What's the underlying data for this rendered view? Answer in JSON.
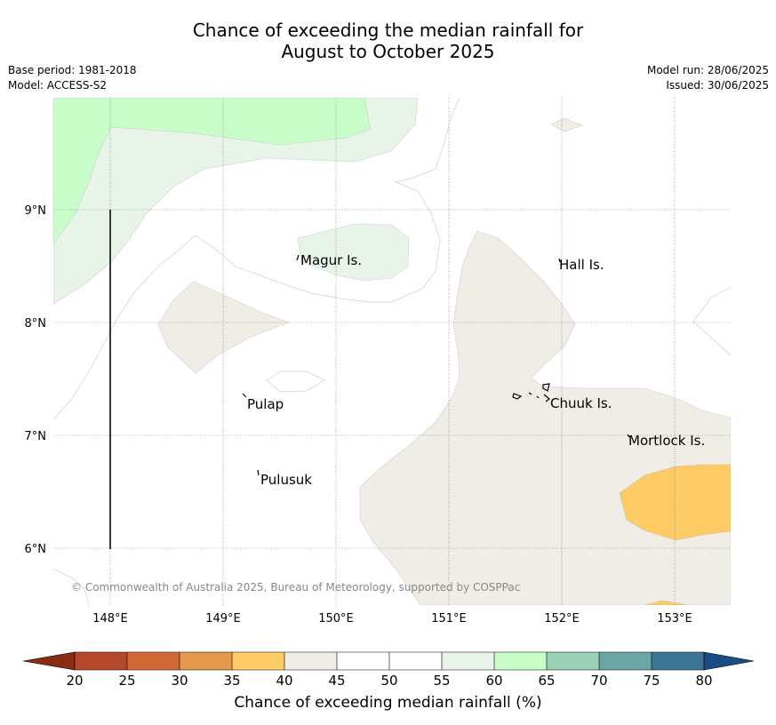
{
  "title_line1": "Chance of exceeding the median rainfall for",
  "title_line2": "August to October 2025",
  "base_period": "Base period: 1981-2018",
  "model": "Model: ACCESS-S2",
  "model_run": "Model run: 28/06/2025",
  "issued": "Issued: 30/06/2025",
  "copyright": "© Commonwealth of Australia 2025, Bureau of Meteorology, supported by COSPPac",
  "map": {
    "lon_ticks": [
      "148°E",
      "149°E",
      "150°E",
      "151°E",
      "152°E",
      "153°E"
    ],
    "lat_ticks": [
      "9°N",
      "8°N",
      "7°N",
      "6°N"
    ],
    "places": [
      {
        "name": "Magur Is."
      },
      {
        "name": "Hall Is."
      },
      {
        "name": "Pulap"
      },
      {
        "name": "Chuuk Is."
      },
      {
        "name": "Mortlock Is."
      },
      {
        "name": "Pulusuk"
      }
    ]
  },
  "colorbar": {
    "label": "Chance of exceeding median rainfall (%)",
    "ticks": [
      "20",
      "25",
      "30",
      "35",
      "40",
      "45",
      "50",
      "55",
      "60",
      "65",
      "70",
      "75",
      "80"
    ],
    "colors": {
      "below_20": "#8b2c14",
      "20_25": "#b5482a",
      "25_30": "#d06a35",
      "30_35": "#e4984c",
      "35_40": "#fdcb65",
      "40_45": "#f0ece6",
      "45_50": "#ffffff",
      "50_55": "#ffffff",
      "55_60": "#e8f4e8",
      "60_65": "#c8fcc8",
      "65_70": "#9ad2b8",
      "70_75": "#6aa6a6",
      "75_80": "#3c7596",
      "above_80": "#1a4c86"
    }
  }
}
